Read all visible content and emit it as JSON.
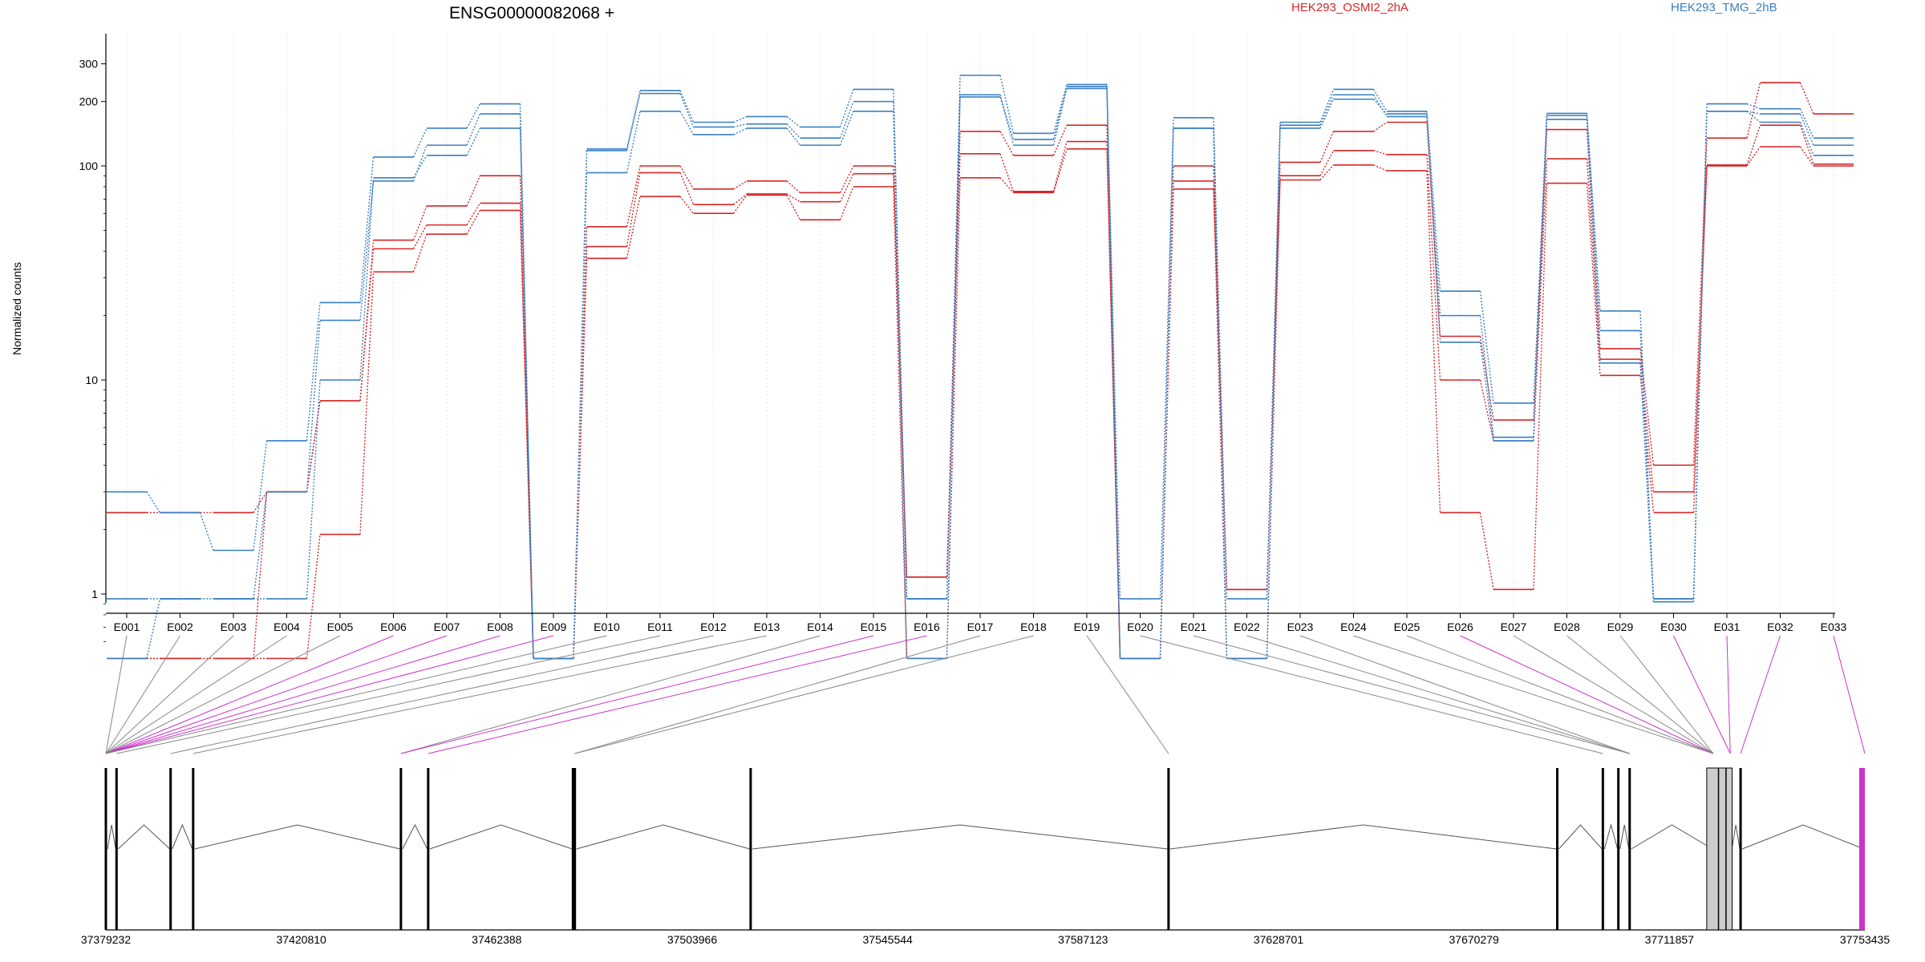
{
  "chart_data": {
    "type": "line",
    "title": "ENSG00000082068 +",
    "ylabel": "Normalized counts",
    "yscale": "log",
    "ylim": [
      0.5,
      330
    ],
    "yticks": [
      "1",
      "10",
      "100",
      "200",
      "300"
    ],
    "ytick_values": [
      1,
      10,
      100,
      200,
      300
    ],
    "grid": "vertical dotted",
    "legend_placement": "top",
    "exons": [
      "E001",
      "E002",
      "E003",
      "E004",
      "E005",
      "E006",
      "E007",
      "E008",
      "E009",
      "E010",
      "E011",
      "E012",
      "E013",
      "E014",
      "E015",
      "E016",
      "E017",
      "E018",
      "E019",
      "E020",
      "E021",
      "E022",
      "E023",
      "E024",
      "E025",
      "E026",
      "E027",
      "E028",
      "E029",
      "E030",
      "E031",
      "E032",
      "E033"
    ],
    "series": [
      {
        "name": "HEK293_OSMI2_2hA",
        "color": "#d62728",
        "values": [
          2.4,
          2.4,
          2.4,
          3.0,
          8.0,
          45,
          65,
          90,
          0.5,
          52,
          100,
          78,
          85,
          75,
          100,
          1.2,
          145,
          112,
          155,
          0.5,
          100,
          1.05,
          104,
          145,
          160,
          16,
          6.5,
          148,
          14,
          4.0,
          135,
          245,
          175
        ]
      },
      {
        "name": "HEK293_OSMI2_2hA",
        "color": "#d62728",
        "values": [
          0.5,
          0.5,
          0.5,
          0.5,
          1.9,
          32,
          48,
          62,
          0.5,
          37,
          72,
          60,
          73,
          56,
          80,
          0.5,
          88,
          75,
          120,
          0.5,
          78,
          0.5,
          86,
          101,
          95,
          2.4,
          1.05,
          83,
          10.5,
          2.4,
          100,
          123,
          100
        ]
      },
      {
        "name": "HEK293_OSMI2_2hA",
        "color": "#d62728",
        "values": [
          0.5,
          0.5,
          0.5,
          3.0,
          8.0,
          41,
          53,
          67,
          0.5,
          42,
          93,
          66,
          74,
          68,
          92,
          1.2,
          114,
          76,
          130,
          0.5,
          85,
          1.05,
          90,
          118,
          113,
          10,
          5.2,
          108,
          12.5,
          3.0,
          101,
          155,
          102
        ]
      },
      {
        "name": "HEK293_TMG_2hB",
        "color": "#3a7fc1",
        "values": [
          3.0,
          2.4,
          1.6,
          5.2,
          23,
          110,
          150,
          195,
          0.5,
          120,
          225,
          160,
          170,
          152,
          228,
          0.95,
          265,
          142,
          240,
          0.95,
          168,
          0.95,
          160,
          228,
          180,
          26,
          7.8,
          176,
          21,
          0.95,
          195,
          185,
          135
        ]
      },
      {
        "name": "HEK293_TMG_2hB",
        "color": "#3a7fc1",
        "values": [
          0.95,
          0.95,
          0.95,
          0.95,
          10,
          88,
          112,
          150,
          0.5,
          93,
          180,
          140,
          150,
          125,
          180,
          0.5,
          215,
          125,
          230,
          0.5,
          150,
          0.5,
          150,
          205,
          175,
          15,
          5.2,
          165,
          12,
          0.92,
          180,
          160,
          112
        ]
      },
      {
        "name": "HEK293_TMG_2hB",
        "color": "#3a7fc1",
        "values": [
          0.5,
          0.95,
          0.95,
          3.0,
          19,
          85,
          125,
          175,
          0.5,
          118,
          218,
          152,
          157,
          135,
          200,
          0.95,
          210,
          133,
          235,
          0.5,
          150,
          0.5,
          155,
          215,
          170,
          20,
          5.4,
          172,
          17,
          0.95,
          180,
          175,
          125
        ]
      }
    ],
    "gene_model": {
      "genomic_ticks": [
        "37379232",
        "37420810",
        "37462388",
        "37503966",
        "37545544",
        "37587123",
        "37628701",
        "37670279",
        "37711857",
        "37753435"
      ],
      "exon_positions": [
        37379232,
        37381500,
        37393000,
        37397800,
        37442000,
        37447800,
        37478600,
        37479000,
        37516400,
        37605300,
        37688000,
        37697700,
        37701000,
        37703400,
        37721200,
        37724800,
        37727000,
        37753435
      ],
      "highlight_color": "#cc33cc",
      "intron_color": "#555555"
    }
  }
}
